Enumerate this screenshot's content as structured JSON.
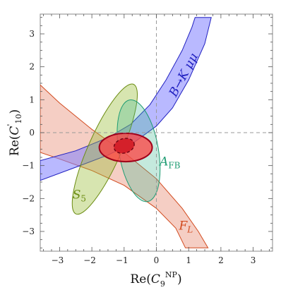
{
  "chart_data": {
    "type": "contour",
    "xlabel": "Re(C9NP)",
    "ylabel": "Re(C'10)",
    "xlim": [
      -3.6,
      3.6
    ],
    "ylim": [
      -3.6,
      3.6
    ],
    "xticks": [
      "−3",
      "−2",
      "−1",
      "0",
      "1",
      "2",
      "3"
    ],
    "yticks": [
      "3",
      "2",
      "1",
      "0",
      "−1",
      "−2",
      "−3"
    ],
    "grid": "dashed lines at x=0 and y=0",
    "colors": {
      "BtoKmumu": "#8080ff",
      "AFB": "#3cb68f",
      "S5": "#9bbf3a",
      "FL": "#e5846b",
      "combined": "#ff4040"
    },
    "series": [
      {
        "name": "B→Kμμ",
        "shape": "band",
        "lower_edge": [
          [
            -3.6,
            -1.45
          ],
          [
            -2.5,
            -1.05
          ],
          [
            -1.5,
            -0.68
          ],
          [
            -0.7,
            -0.3
          ],
          [
            0.0,
            0.2
          ],
          [
            0.5,
            0.75
          ],
          [
            1.0,
            1.6
          ],
          [
            1.5,
            2.7
          ],
          [
            1.7,
            3.5
          ]
        ],
        "upper_edge": [
          [
            -3.6,
            -0.85
          ],
          [
            -2.5,
            -0.55
          ],
          [
            -1.5,
            -0.15
          ],
          [
            -0.8,
            0.25
          ],
          [
            -0.2,
            0.85
          ],
          [
            0.3,
            1.6
          ],
          [
            0.8,
            2.5
          ],
          [
            1.1,
            3.2
          ],
          [
            1.2,
            3.5
          ]
        ]
      },
      {
        "name": "FL",
        "shape": "band",
        "upper_edge": [
          [
            -3.6,
            1.45
          ],
          [
            -3.0,
            0.9
          ],
          [
            -2.0,
            0.1
          ],
          [
            -1.0,
            -0.6
          ],
          [
            0.0,
            -1.4
          ],
          [
            0.8,
            -2.3
          ],
          [
            1.3,
            -3.0
          ],
          [
            1.6,
            -3.5
          ]
        ],
        "lower_edge": [
          [
            -3.6,
            -0.6
          ],
          [
            -3.0,
            -0.8
          ],
          [
            -2.0,
            -1.15
          ],
          [
            -1.0,
            -1.6
          ],
          [
            0.0,
            -2.3
          ],
          [
            0.6,
            -2.9
          ],
          [
            0.9,
            -3.5
          ]
        ]
      },
      {
        "name": "S5",
        "shape": "ellipse",
        "cx": -1.6,
        "cy": -0.5,
        "rx": 2.2,
        "ry": 0.5,
        "angle_deg": 66
      },
      {
        "name": "AFB",
        "shape": "ellipse",
        "cx": -0.55,
        "cy": -0.55,
        "rx": 1.6,
        "ry": 0.6,
        "angle_deg": -80
      },
      {
        "name": "68% combined",
        "shape": "ellipse",
        "cx": -0.95,
        "cy": -0.45,
        "rx": 0.82,
        "ry": 0.43,
        "angle_deg": 0
      },
      {
        "name": "best fit core",
        "shape": "ellipse",
        "cx": -1.0,
        "cy": -0.4,
        "rx": 0.32,
        "ry": 0.22,
        "angle_deg": 15
      }
    ],
    "annotations": [
      {
        "text": "B→K μμ",
        "x": 0.95,
        "y": 1.7,
        "rotation_deg": -62,
        "color": "#2020c0"
      },
      {
        "text": "AFB",
        "x": 0.1,
        "y": -1.0,
        "color": "#1f9c73"
      },
      {
        "text": "S5",
        "x": -2.6,
        "y": -2.0,
        "color": "#6b8c12"
      },
      {
        "text": "FL",
        "x": 0.7,
        "y": -2.95,
        "color": "#d24a1e"
      }
    ]
  }
}
